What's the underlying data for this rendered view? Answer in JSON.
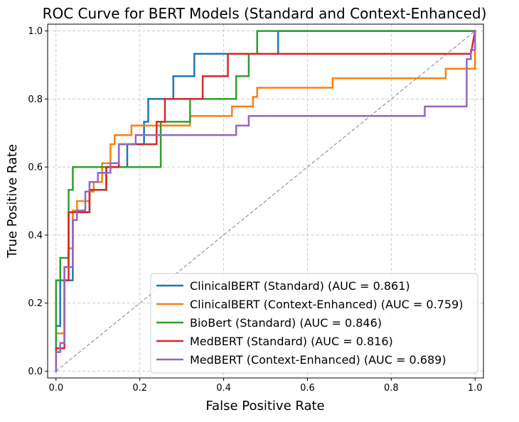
{
  "chart_data": {
    "type": "line",
    "title": "ROC Curve for BERT Models (Standard and Context-Enhanced)",
    "xlabel": "False Positive Rate",
    "ylabel": "True Positive Rate",
    "xlim": [
      -0.02,
      1.02
    ],
    "ylim": [
      -0.02,
      1.02
    ],
    "xticks": [
      "0.0",
      "0.2",
      "0.4",
      "0.6",
      "0.8",
      "1.0"
    ],
    "yticks": [
      "0.0",
      "0.2",
      "0.4",
      "0.6",
      "0.8",
      "1.0"
    ],
    "grid": true,
    "legend_position": "lower-right",
    "diagonal": {
      "x": [
        0,
        1
      ],
      "y": [
        0,
        1
      ],
      "color": "#808080"
    },
    "series": [
      {
        "name": "ClinicalBERT (Standard) (AUC = 0.861)",
        "color": "#1f77b4",
        "x": [
          0,
          0,
          0.01,
          0.01,
          0.04,
          0.04,
          0.08,
          0.08,
          0.12,
          0.12,
          0.17,
          0.17,
          0.21,
          0.21,
          0.22,
          0.22,
          0.28,
          0.28,
          0.33,
          0.33,
          0.4,
          0.4,
          0.53,
          0.53,
          1.0
        ],
        "y": [
          0,
          0.133,
          0.133,
          0.267,
          0.267,
          0.467,
          0.467,
          0.533,
          0.533,
          0.6,
          0.6,
          0.667,
          0.667,
          0.733,
          0.733,
          0.8,
          0.8,
          0.867,
          0.867,
          0.933,
          0.933,
          0.933,
          0.933,
          1.0,
          1.0
        ]
      },
      {
        "name": "ClinicalBERT (Context-Enhanced) (AUC = 0.759)",
        "color": "#ff7f0e",
        "x": [
          0,
          0,
          0.02,
          0.02,
          0.03,
          0.03,
          0.04,
          0.04,
          0.05,
          0.05,
          0.08,
          0.08,
          0.09,
          0.09,
          0.11,
          0.11,
          0.13,
          0.13,
          0.14,
          0.14,
          0.18,
          0.18,
          0.32,
          0.32,
          0.42,
          0.42,
          0.47,
          0.47,
          0.48,
          0.48,
          0.66,
          0.66,
          0.93,
          0.93,
          1.0,
          1.0
        ],
        "y": [
          0,
          0.111,
          0.111,
          0.306,
          0.306,
          0.361,
          0.361,
          0.472,
          0.472,
          0.5,
          0.5,
          0.528,
          0.528,
          0.556,
          0.556,
          0.611,
          0.611,
          0.667,
          0.667,
          0.694,
          0.694,
          0.722,
          0.722,
          0.75,
          0.75,
          0.778,
          0.778,
          0.806,
          0.806,
          0.833,
          0.833,
          0.861,
          0.861,
          0.889,
          0.889,
          1.0
        ]
      },
      {
        "name": "BioBert (Standard) (AUC = 0.846)",
        "color": "#2ca02c",
        "x": [
          0,
          0,
          0.01,
          0.01,
          0.03,
          0.03,
          0.04,
          0.04,
          0.25,
          0.25,
          0.32,
          0.32,
          0.43,
          0.43,
          0.46,
          0.46,
          0.48,
          0.48,
          1.0
        ],
        "y": [
          0,
          0.267,
          0.267,
          0.333,
          0.333,
          0.533,
          0.533,
          0.6,
          0.6,
          0.733,
          0.733,
          0.8,
          0.8,
          0.867,
          0.867,
          0.933,
          0.933,
          1.0,
          1.0
        ]
      },
      {
        "name": "MedBERT (Standard) (AUC = 0.816)",
        "color": "#d62728",
        "x": [
          0,
          0,
          0.02,
          0.02,
          0.03,
          0.03,
          0.05,
          0.05,
          0.08,
          0.08,
          0.12,
          0.12,
          0.15,
          0.15,
          0.24,
          0.24,
          0.26,
          0.26,
          0.35,
          0.35,
          0.41,
          0.41,
          0.99,
          0.99,
          1.0
        ],
        "y": [
          0,
          0.067,
          0.067,
          0.267,
          0.267,
          0.467,
          0.467,
          0.467,
          0.467,
          0.533,
          0.533,
          0.6,
          0.6,
          0.667,
          0.667,
          0.733,
          0.733,
          0.8,
          0.8,
          0.867,
          0.867,
          0.933,
          0.933,
          0.933,
          1.0
        ]
      },
      {
        "name": "MedBERT (Context-Enhanced) (AUC = 0.689)",
        "color": "#9467bd",
        "x": [
          0,
          0,
          0.01,
          0.01,
          0.02,
          0.02,
          0.04,
          0.04,
          0.05,
          0.05,
          0.07,
          0.07,
          0.08,
          0.08,
          0.1,
          0.1,
          0.13,
          0.13,
          0.15,
          0.15,
          0.19,
          0.19,
          0.23,
          0.23,
          0.43,
          0.43,
          0.46,
          0.46,
          0.88,
          0.88,
          0.98,
          0.98,
          0.99,
          0.99,
          1.0,
          1.0
        ],
        "y": [
          0,
          0.056,
          0.056,
          0.083,
          0.083,
          0.306,
          0.306,
          0.444,
          0.444,
          0.472,
          0.472,
          0.528,
          0.528,
          0.556,
          0.556,
          0.583,
          0.583,
          0.611,
          0.611,
          0.667,
          0.667,
          0.694,
          0.694,
          0.694,
          0.694,
          0.722,
          0.722,
          0.75,
          0.75,
          0.778,
          0.778,
          0.917,
          0.917,
          0.944,
          0.944,
          1.0
        ]
      }
    ]
  }
}
